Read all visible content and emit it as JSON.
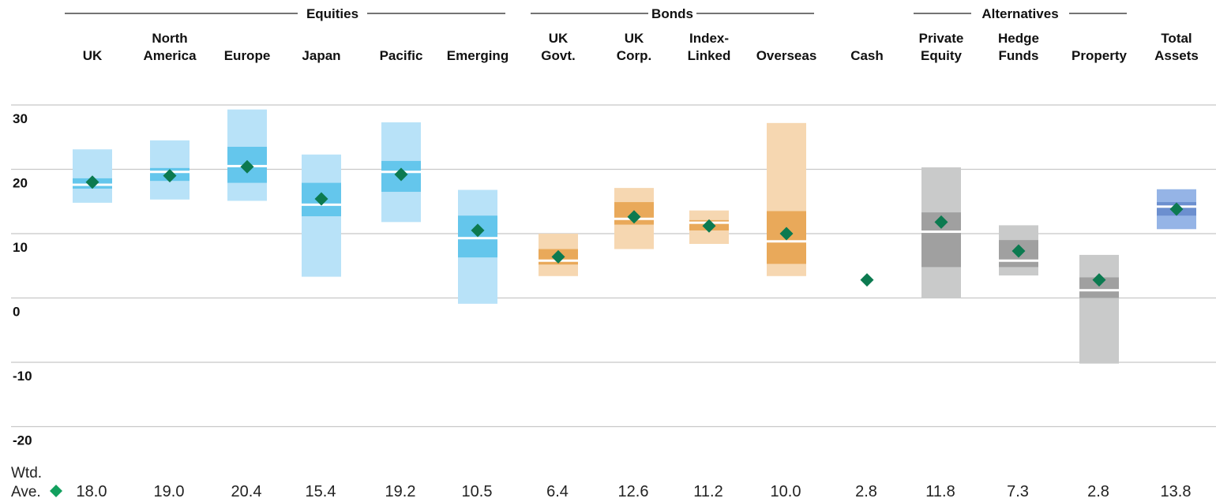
{
  "chart_data": {
    "type": "box",
    "ylim": [
      -25,
      30
    ],
    "yticks": [
      "30",
      "20",
      "10",
      "0",
      "-10",
      "-20"
    ],
    "ytick_values": [
      30,
      20,
      10,
      0,
      -10,
      -20
    ],
    "grid": true,
    "groups": [
      {
        "label": "Equities",
        "start": 0,
        "end": 5
      },
      {
        "label": "Bonds",
        "start": 6,
        "end": 9
      },
      {
        "label": "Alternatives",
        "start": 11,
        "end": 13
      }
    ],
    "categories": [
      {
        "lines": [
          "",
          "UK"
        ],
        "min": 14.8,
        "q1": 17.0,
        "median": 17.6,
        "q3": 18.6,
        "max": 23.1,
        "mean": 18.0,
        "avg_label": "18.0",
        "color": "blue"
      },
      {
        "lines": [
          "North",
          "America"
        ],
        "min": 15.3,
        "q1": 18.2,
        "median": 19.6,
        "q3": 20.2,
        "max": 24.5,
        "mean": 19.0,
        "avg_label": "19.0",
        "color": "blue"
      },
      {
        "lines": [
          "",
          "Europe"
        ],
        "min": 15.1,
        "q1": 17.9,
        "median": 20.5,
        "q3": 23.5,
        "max": 29.3,
        "mean": 20.4,
        "avg_label": "20.4",
        "color": "blue"
      },
      {
        "lines": [
          "",
          "Japan"
        ],
        "min": 3.3,
        "q1": 12.7,
        "median": 14.5,
        "q3": 17.9,
        "max": 22.3,
        "mean": 15.4,
        "avg_label": "15.4",
        "color": "blue"
      },
      {
        "lines": [
          "",
          "Pacific"
        ],
        "min": 11.8,
        "q1": 16.5,
        "median": 19.6,
        "q3": 21.3,
        "max": 27.3,
        "mean": 19.2,
        "avg_label": "19.2",
        "color": "blue"
      },
      {
        "lines": [
          "",
          "Emerging"
        ],
        "min": -0.9,
        "q1": 6.3,
        "median": 9.3,
        "q3": 12.8,
        "max": 16.8,
        "mean": 10.5,
        "avg_label": "10.5",
        "color": "blue"
      },
      {
        "lines": [
          "UK",
          "Govt."
        ],
        "min": 3.4,
        "q1": 5.2,
        "median": 5.8,
        "q3": 7.6,
        "max": 10.0,
        "mean": 6.4,
        "avg_label": "6.4",
        "color": "orange"
      },
      {
        "lines": [
          "UK",
          "Corp."
        ],
        "min": 7.6,
        "q1": 11.4,
        "median": 12.3,
        "q3": 14.9,
        "max": 17.1,
        "mean": 12.6,
        "avg_label": "12.6",
        "color": "orange"
      },
      {
        "lines": [
          "Index-",
          "Linked"
        ],
        "min": 8.4,
        "q1": 10.5,
        "median": 11.7,
        "q3": 12.1,
        "max": 13.6,
        "mean": 11.2,
        "avg_label": "11.2",
        "color": "orange"
      },
      {
        "lines": [
          "",
          "Overseas"
        ],
        "min": 3.4,
        "q1": 5.3,
        "median": 8.8,
        "q3": 13.5,
        "max": 27.2,
        "mean": 10.0,
        "avg_label": "10.0",
        "color": "orange"
      },
      {
        "lines": [
          "",
          "Cash"
        ],
        "mean": 2.8,
        "avg_label": "2.8",
        "color": "none"
      },
      {
        "lines": [
          "Private",
          "Equity"
        ],
        "min": 0.0,
        "q1": 4.8,
        "median": 10.3,
        "q3": 13.3,
        "max": 20.3,
        "mean": 11.8,
        "avg_label": "11.8",
        "color": "gray"
      },
      {
        "lines": [
          "Hedge",
          "Funds"
        ],
        "min": 3.5,
        "q1": 4.8,
        "median": 5.8,
        "q3": 9.0,
        "max": 11.3,
        "mean": 7.3,
        "avg_label": "7.3",
        "color": "gray"
      },
      {
        "lines": [
          "",
          "Property"
        ],
        "min": -10.2,
        "q1": 0.0,
        "median": 1.2,
        "q3": 3.2,
        "max": 6.7,
        "mean": 2.8,
        "avg_label": "2.8",
        "color": "gray"
      },
      {
        "lines": [
          "Total",
          "Assets"
        ],
        "min": 10.7,
        "q1": 12.8,
        "median": 14.2,
        "q3": 14.9,
        "max": 16.9,
        "mean": 13.8,
        "avg_label": "13.8",
        "color": "darkblue"
      }
    ],
    "average_label": [
      "Wtd.",
      "Ave."
    ],
    "colors": {
      "blue": {
        "whisker": "#b8e2f8",
        "box": "#64c6ec"
      },
      "orange": {
        "whisker": "#f6d7b1",
        "box": "#e9a95a"
      },
      "gray": {
        "whisker": "#c9caca",
        "box": "#a0a0a0"
      },
      "darkblue": {
        "whisker": "#95b4e6",
        "box": "#6c8fcf"
      },
      "marker": "#0c7a50",
      "legend_marker": "#12a05e",
      "grid": "#c8c8c8",
      "median": "#ffffff"
    }
  }
}
